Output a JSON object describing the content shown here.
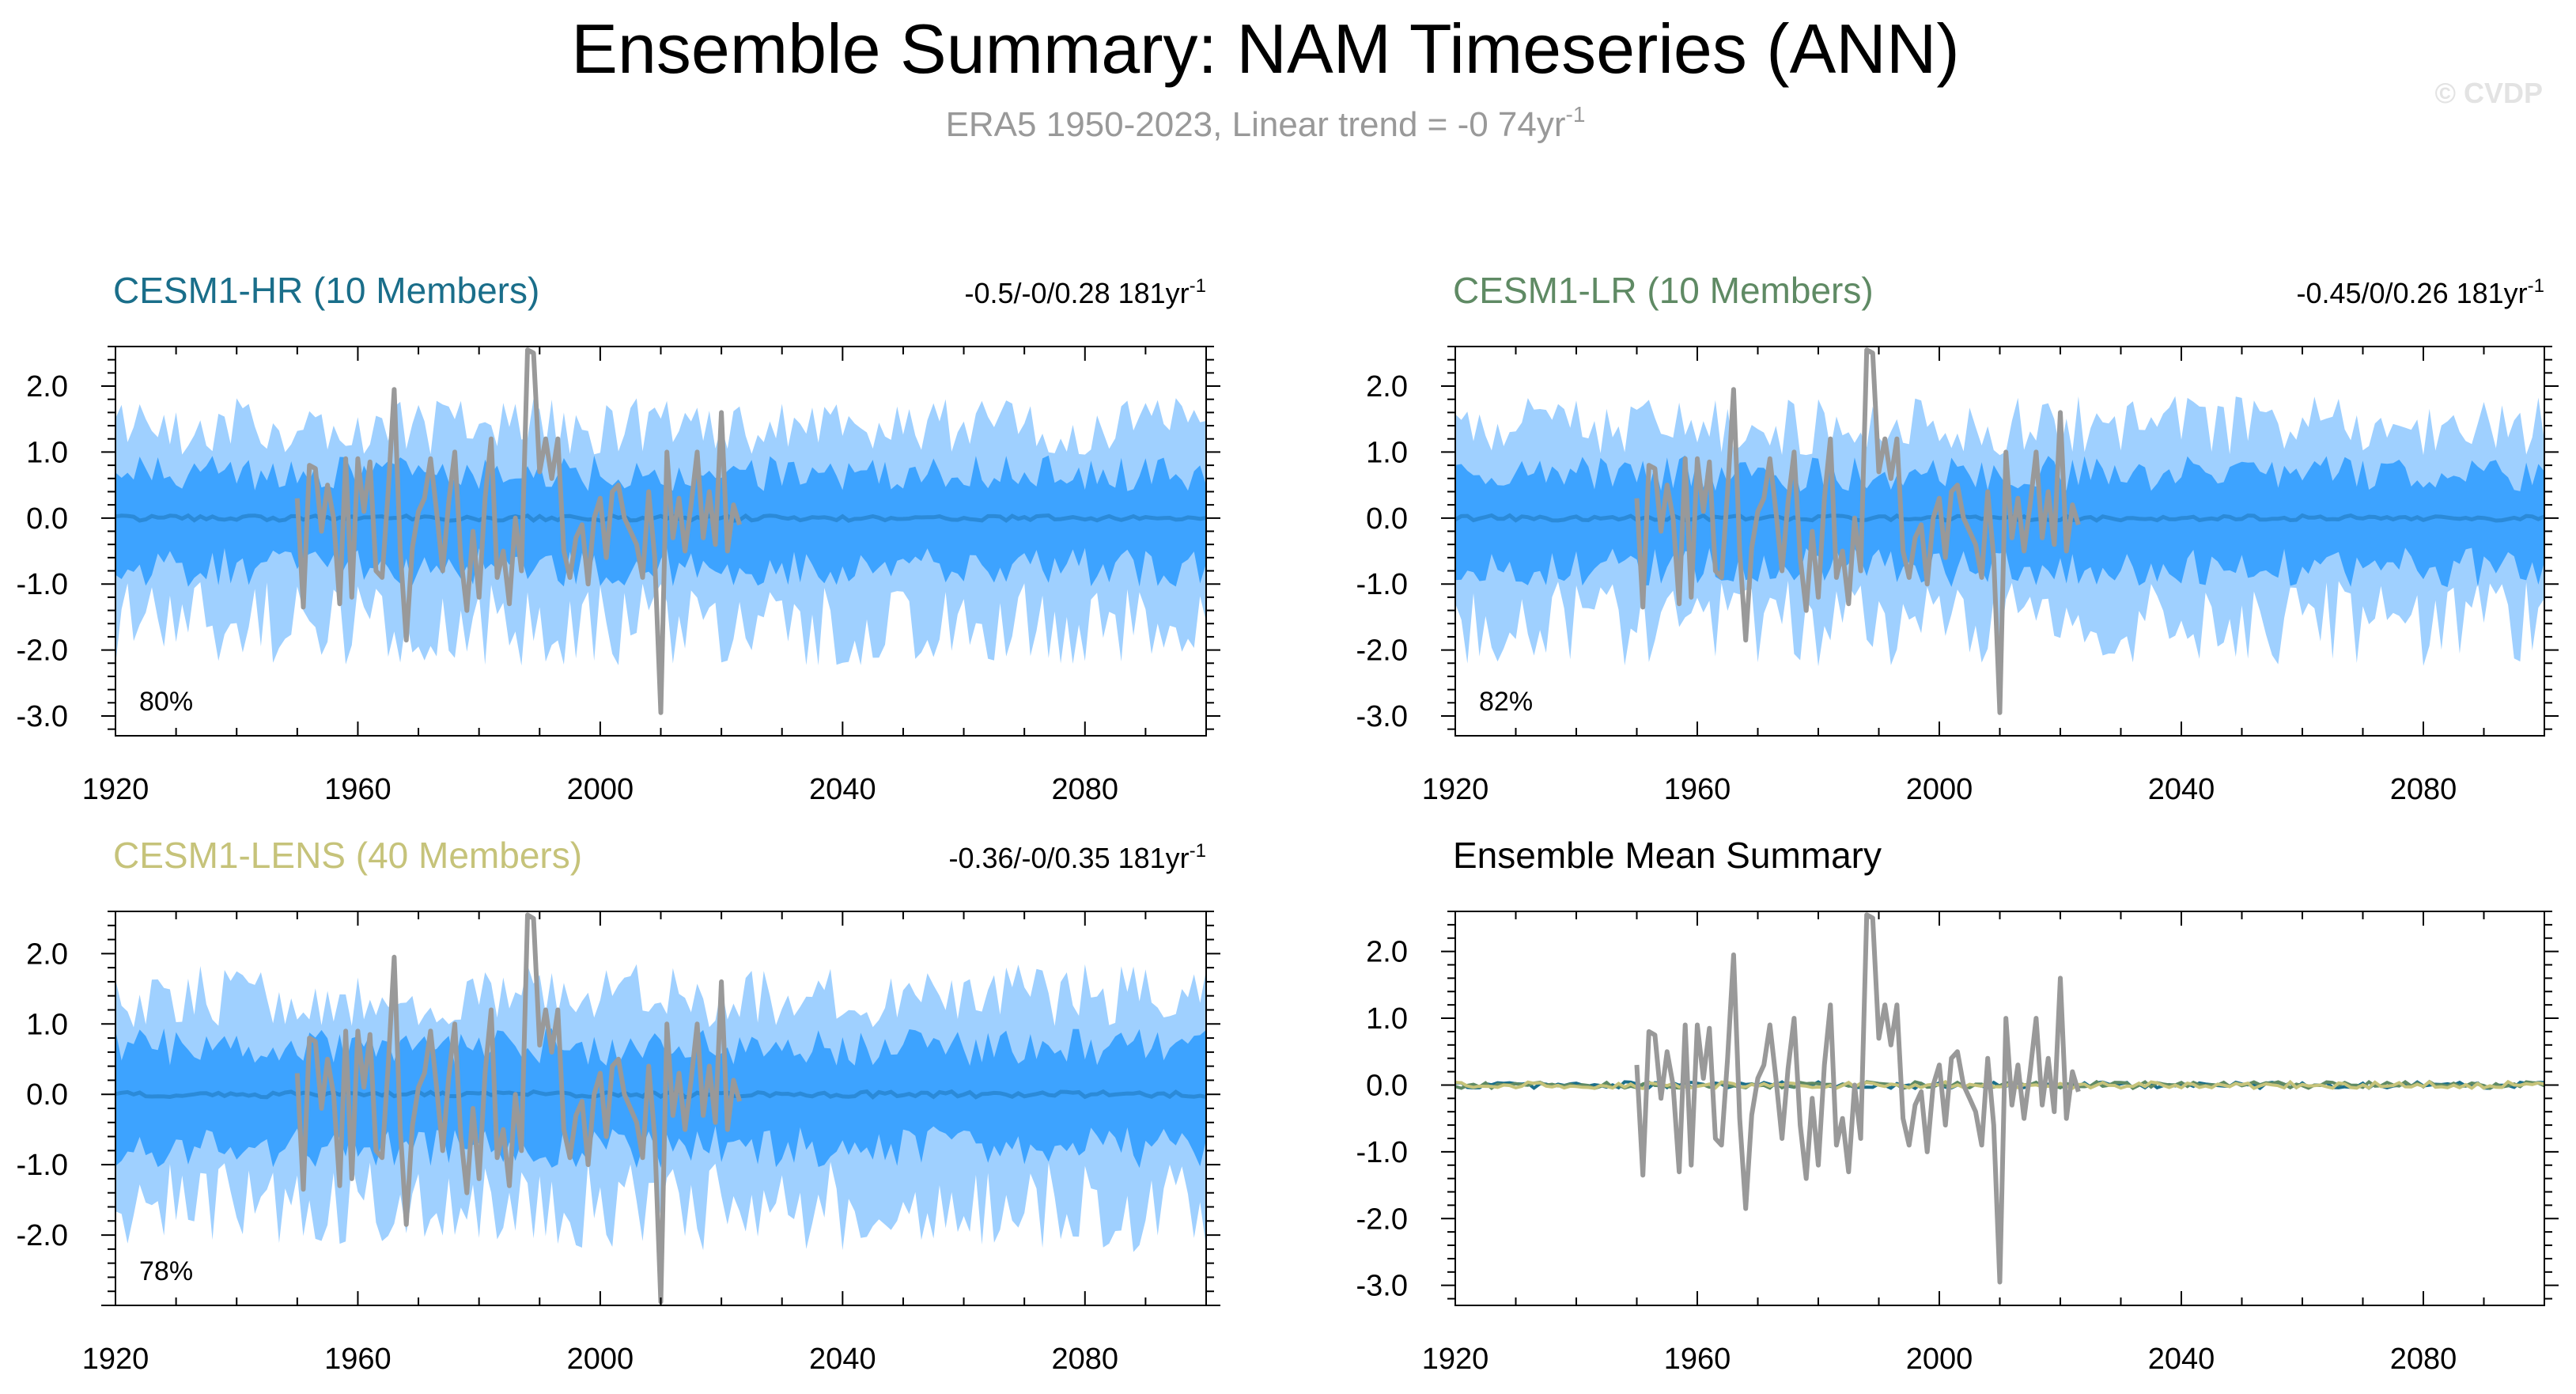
{
  "header": {
    "title": "Ensemble Summary: NAM Timeseries (ANN)",
    "subtitle_main": "ERA5 1950-2023, Linear trend = -0 74yr",
    "subtitle_sup": "-1",
    "watermark": "© CVDP"
  },
  "colors": {
    "inner_band": "#3da3ff",
    "outer_band": "#9fd0ff",
    "ensemble_mean": "#2b8ad8",
    "obs": "#999999",
    "hr": "#1a6e8a",
    "lr": "#5f8a64",
    "lens": "#c6c37a",
    "gray_subtitle": "#999999"
  },
  "chart_data": [
    {
      "type": "area",
      "id": "hr",
      "title": "CESM1-HR (10 Members)",
      "trend_text": "-0.5/-0/0.28 181yr",
      "trend_sup": "-1",
      "percent_label": "80%",
      "xlim": [
        1920,
        2100
      ],
      "ylim": [
        -3.3,
        2.6
      ],
      "xticks": [
        "1920",
        "1960",
        "2000",
        "2040",
        "2080"
      ],
      "yticks": [
        "2.0",
        "1.0",
        "0.0",
        "-1.0",
        "-2.0",
        "-3.0"
      ],
      "series": [
        {
          "name": "",
          "kind": "outer_band",
          "range": [
            1920,
            2100
          ]
        },
        {
          "name": "",
          "kind": "inner_band",
          "range": [
            1920,
            2100
          ]
        },
        {
          "name": "",
          "kind": "ensemble_mean",
          "range": [
            1920,
            2100
          ]
        },
        {
          "name": "",
          "kind": "observations",
          "range": [
            1950,
            2023
          ]
        }
      ]
    },
    {
      "type": "area",
      "id": "lr",
      "title": "CESM1-LR (10 Members)",
      "trend_text": "-0.45/0/0.26 181yr",
      "trend_sup": "-1",
      "percent_label": "82%",
      "xlim": [
        1920,
        2100
      ],
      "ylim": [
        -3.3,
        2.6
      ],
      "xticks": [
        "1920",
        "1960",
        "2000",
        "2040",
        "2080"
      ],
      "yticks": [
        "2.0",
        "1.0",
        "0.0",
        "-1.0",
        "-2.0",
        "-3.0"
      ],
      "series": [
        {
          "name": "",
          "kind": "outer_band",
          "range": [
            1920,
            2100
          ]
        },
        {
          "name": "",
          "kind": "inner_band",
          "range": [
            1920,
            2100
          ]
        },
        {
          "name": "",
          "kind": "ensemble_mean",
          "range": [
            1920,
            2100
          ]
        },
        {
          "name": "",
          "kind": "observations",
          "range": [
            1950,
            2023
          ]
        }
      ]
    },
    {
      "type": "area",
      "id": "lens",
      "title": "CESM1-LENS (40 Members)",
      "trend_text": "-0.36/-0/0.35 181yr",
      "trend_sup": "-1",
      "percent_label": "78%",
      "xlim": [
        1920,
        2100
      ],
      "ylim": [
        -3.0,
        2.6
      ],
      "xticks": [
        "1920",
        "1960",
        "2000",
        "2040",
        "2080"
      ],
      "yticks": [
        "2.0",
        "1.0",
        "0.0",
        "-1.0",
        "-2.0"
      ],
      "series": [
        {
          "name": "",
          "kind": "outer_band",
          "range": [
            1920,
            2100
          ]
        },
        {
          "name": "",
          "kind": "inner_band",
          "range": [
            1920,
            2100
          ]
        },
        {
          "name": "",
          "kind": "ensemble_mean",
          "range": [
            1920,
            2100
          ]
        },
        {
          "name": "",
          "kind": "observations",
          "range": [
            1950,
            2023
          ]
        }
      ]
    },
    {
      "type": "line",
      "id": "summary",
      "title": "Ensemble Mean Summary",
      "xlim": [
        1920,
        2100
      ],
      "ylim": [
        -3.3,
        2.6
      ],
      "xticks": [
        "1920",
        "1960",
        "2000",
        "2040",
        "2080"
      ],
      "yticks": [
        "2.0",
        "1.0",
        "0.0",
        "-1.0",
        "-2.0",
        "-3.0"
      ],
      "series": [
        {
          "name": "",
          "kind": "hr_mean",
          "range": [
            1920,
            2100
          ]
        },
        {
          "name": "",
          "kind": "lr_mean",
          "range": [
            1920,
            2100
          ]
        },
        {
          "name": "",
          "kind": "lens_mean",
          "range": [
            1920,
            2100
          ]
        },
        {
          "name": "",
          "kind": "observations",
          "range": [
            1950,
            2023
          ]
        }
      ]
    }
  ],
  "observations": {
    "x": [
      1950,
      1951,
      1952,
      1953,
      1954,
      1955,
      1956,
      1957,
      1958,
      1959,
      1960,
      1961,
      1962,
      1963,
      1964,
      1965,
      1966,
      1967,
      1968,
      1969,
      1970,
      1971,
      1972,
      1973,
      1974,
      1975,
      1976,
      1977,
      1978,
      1979,
      1980,
      1981,
      1982,
      1983,
      1984,
      1985,
      1986,
      1987,
      1988,
      1989,
      1990,
      1991,
      1992,
      1993,
      1994,
      1995,
      1996,
      1997,
      1998,
      1999,
      2000,
      2001,
      2002,
      2003,
      2004,
      2005,
      2006,
      2007,
      2008,
      2009,
      2010,
      2011,
      2012,
      2013,
      2014,
      2015,
      2016,
      2017,
      2018,
      2019,
      2020,
      2021,
      2022,
      2023
    ],
    "y": [
      0.3,
      -1.35,
      0.8,
      0.75,
      -0.2,
      0.5,
      0.0,
      -1.3,
      0.9,
      -1.2,
      0.9,
      0.1,
      0.85,
      -0.8,
      -0.9,
      0.4,
      1.95,
      -0.5,
      -1.85,
      -0.45,
      0.1,
      0.3,
      0.9,
      0.1,
      -0.8,
      0.25,
      1.0,
      -0.6,
      -1.4,
      -0.2,
      -1.2,
      0.3,
      1.2,
      -0.9,
      -0.5,
      -1.3,
      0.0,
      -0.8,
      2.55,
      2.5,
      0.7,
      1.2,
      0.6,
      1.2,
      -0.5,
      -0.9,
      -0.3,
      -0.1,
      -1.0,
      0.0,
      0.3,
      -0.6,
      0.4,
      0.5,
      0.0,
      -0.2,
      -0.4,
      -0.9,
      0.4,
      -0.6,
      -2.95,
      1.0,
      -0.3,
      0.3,
      -0.5,
      0.2,
      1.0,
      -0.3,
      0.4,
      -0.4,
      1.6,
      -0.5,
      0.2,
      -0.1
    ]
  }
}
